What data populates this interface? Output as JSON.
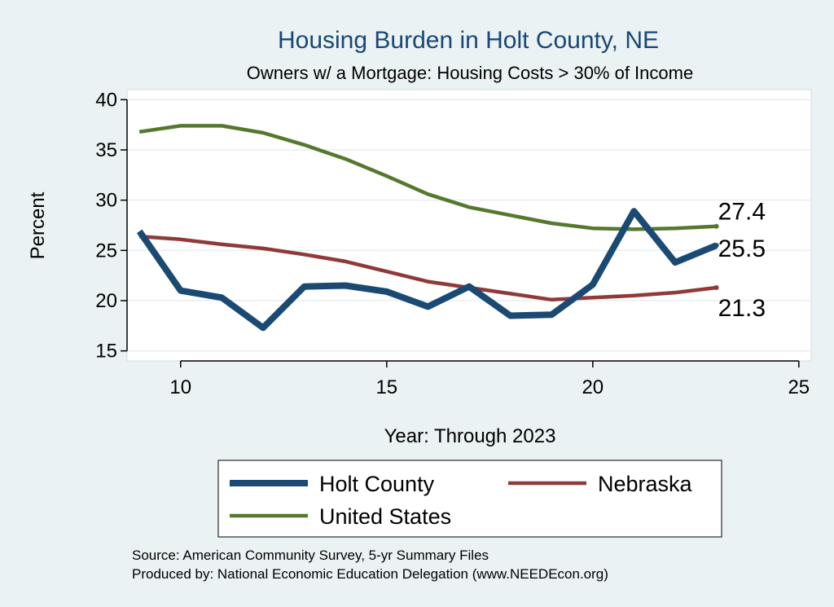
{
  "chart_data": {
    "type": "line",
    "title": "Housing Burden in Holt County, NE",
    "subtitle": "Owners w/ a Mortgage: Housing Costs > 30% of Income",
    "xlabel": "Year: Through 2023",
    "ylabel": "Percent",
    "xlim": [
      8.7,
      25.3
    ],
    "ylim": [
      14,
      41
    ],
    "xticks": [
      10,
      15,
      20,
      25
    ],
    "yticks": [
      15,
      20,
      25,
      30,
      35,
      40
    ],
    "grid": true,
    "legend_position": "bottom",
    "x": [
      9,
      10,
      11,
      12,
      13,
      14,
      15,
      16,
      17,
      18,
      19,
      20,
      21,
      22,
      23
    ],
    "series": [
      {
        "name": "Holt County",
        "color": "#1a4a73",
        "values": [
          26.9,
          21.0,
          20.3,
          17.3,
          21.4,
          21.5,
          20.9,
          19.4,
          21.4,
          18.5,
          18.6,
          21.6,
          28.9,
          23.8,
          25.5
        ],
        "end_label": "25.5"
      },
      {
        "name": "Nebraska",
        "color": "#8f3a3a",
        "values": [
          26.4,
          26.1,
          25.6,
          25.2,
          24.6,
          23.9,
          22.9,
          21.9,
          21.3,
          20.7,
          20.1,
          20.3,
          20.5,
          20.8,
          21.3
        ],
        "end_label": "21.3"
      },
      {
        "name": "United States",
        "color": "#55782e",
        "values": [
          36.8,
          37.4,
          37.4,
          36.7,
          35.5,
          34.1,
          32.4,
          30.6,
          29.3,
          28.5,
          27.7,
          27.2,
          27.1,
          27.2,
          27.4
        ],
        "end_label": "27.4"
      }
    ],
    "notes": [
      "Source: American Community Survey, 5-yr Summary Files",
      "Produced by: National Economic Education Delegation (www.NEEDEcon.org)"
    ]
  }
}
